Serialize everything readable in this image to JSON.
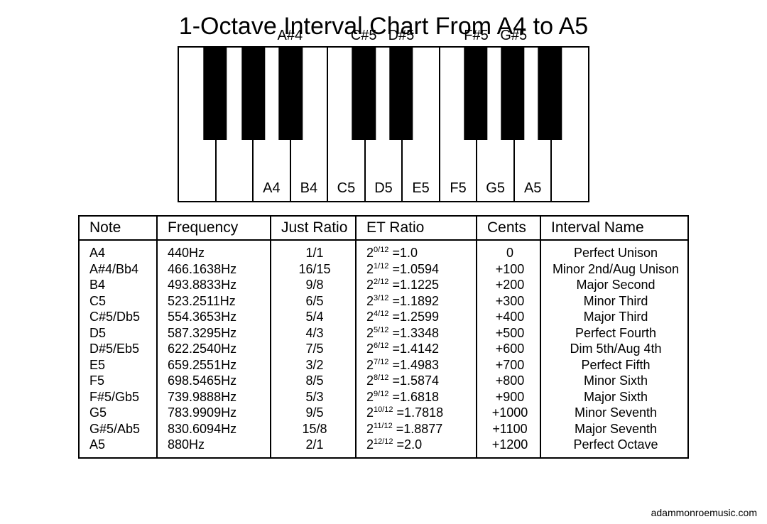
{
  "title": "1-Octave Interval Chart From A4 to A5",
  "credit": "adammonroemusic.com",
  "keyboard": {
    "white_key_count": 11,
    "black_key_width_pct": 5.8,
    "white_labels": [
      {
        "index": 2,
        "text": "A4"
      },
      {
        "index": 3,
        "text": "B4"
      },
      {
        "index": 4,
        "text": "C5"
      },
      {
        "index": 5,
        "text": "D5"
      },
      {
        "index": 6,
        "text": "E5"
      },
      {
        "index": 7,
        "text": "F5"
      },
      {
        "index": 8,
        "text": "G5"
      },
      {
        "index": 9,
        "text": "A5"
      }
    ],
    "black_keys": [
      {
        "pos_pct": 8.8,
        "label": ""
      },
      {
        "pos_pct": 18.2,
        "label": ""
      },
      {
        "pos_pct": 27.3,
        "label": "A#4"
      },
      {
        "pos_pct": 45.2,
        "label": "C#5"
      },
      {
        "pos_pct": 54.3,
        "label": "D#5"
      },
      {
        "pos_pct": 72.5,
        "label": "F#5"
      },
      {
        "pos_pct": 81.6,
        "label": "G#5"
      },
      {
        "pos_pct": 90.7,
        "label": ""
      }
    ]
  },
  "table": {
    "headers": [
      "Note",
      "Frequency",
      "Just Ratio",
      "ET Ratio",
      "Cents",
      "Interval Name"
    ],
    "rows": [
      {
        "note": "A4",
        "freq": "440Hz",
        "just": "1/1",
        "et_exp": "0/12",
        "et_val": "1.0",
        "cents": "0",
        "name": "Perfect Unison"
      },
      {
        "note": "A#4/Bb4",
        "freq": "466.1638Hz",
        "just": "16/15",
        "et_exp": "1/12",
        "et_val": "1.0594",
        "cents": "+100",
        "name": "Minor 2nd/Aug Unison"
      },
      {
        "note": "B4",
        "freq": "493.8833Hz",
        "just": "9/8",
        "et_exp": "2/12",
        "et_val": "1.1225",
        "cents": "+200",
        "name": "Major Second"
      },
      {
        "note": "C5",
        "freq": "523.2511Hz",
        "just": "6/5",
        "et_exp": "3/12",
        "et_val": "1.1892",
        "cents": "+300",
        "name": "Minor Third"
      },
      {
        "note": "C#5/Db5",
        "freq": "554.3653Hz",
        "just": "5/4",
        "et_exp": "4/12",
        "et_val": "1.2599",
        "cents": "+400",
        "name": "Major Third"
      },
      {
        "note": "D5",
        "freq": "587.3295Hz",
        "just": "4/3",
        "et_exp": "5/12",
        "et_val": "1.3348",
        "cents": "+500",
        "name": "Perfect Fourth"
      },
      {
        "note": "D#5/Eb5",
        "freq": "622.2540Hz",
        "just": "7/5",
        "et_exp": "6/12",
        "et_val": "1.4142",
        "cents": "+600",
        "name": "Dim 5th/Aug 4th"
      },
      {
        "note": "E5",
        "freq": "659.2551Hz",
        "just": "3/2",
        "et_exp": "7/12",
        "et_val": "1.4983",
        "cents": "+700",
        "name": "Perfect Fifth"
      },
      {
        "note": "F5",
        "freq": "698.5465Hz",
        "just": "8/5",
        "et_exp": "8/12",
        "et_val": "1.5874",
        "cents": "+800",
        "name": "Minor Sixth"
      },
      {
        "note": "F#5/Gb5",
        "freq": "739.9888Hz",
        "just": "5/3",
        "et_exp": "9/12",
        "et_val": "1.6818",
        "cents": "+900",
        "name": "Major Sixth"
      },
      {
        "note": "G5",
        "freq": "783.9909Hz",
        "just": "9/5",
        "et_exp": "10/12",
        "et_val": "1.7818",
        "cents": "+1000",
        "name": "Minor Seventh"
      },
      {
        "note": "G#5/Ab5",
        "freq": "830.6094Hz",
        "just": "15/8",
        "et_exp": "11/12",
        "et_val": "1.8877",
        "cents": "+1100",
        "name": "Major Seventh"
      },
      {
        "note": "A5",
        "freq": "880Hz",
        "just": "2/1",
        "et_exp": "12/12",
        "et_val": "2.0",
        "cents": "+1200",
        "name": "Perfect Octave"
      }
    ]
  }
}
